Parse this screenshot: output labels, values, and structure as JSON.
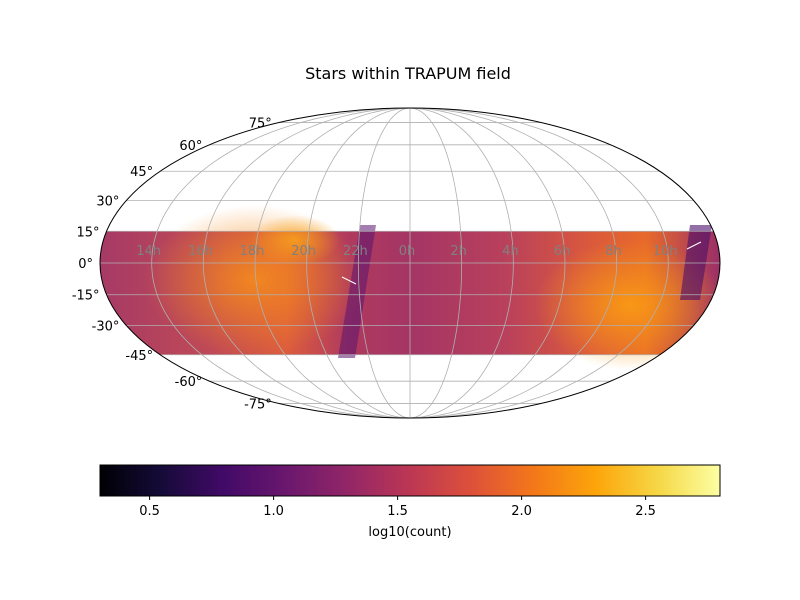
{
  "chart_data": {
    "type": "heatmap",
    "projection": "mollweide",
    "title": "Stars within TRAPUM field",
    "colorbar": {
      "label": "log10(count)",
      "colormap": "inferno",
      "range": [
        0.3,
        2.8
      ],
      "ticks": [
        "0.5",
        "1.0",
        "1.5",
        "2.0",
        "2.5"
      ],
      "tick_values": [
        0.5,
        1.0,
        1.5,
        2.0,
        2.5
      ]
    },
    "ra_ticks": [
      "14h",
      "16h",
      "18h",
      "20h",
      "22h",
      "0h",
      "2h",
      "4h",
      "6h",
      "8h",
      "10h"
    ],
    "ra_tick_values": [
      -150,
      -120,
      -90,
      -60,
      -30,
      0,
      30,
      60,
      90,
      120,
      150
    ],
    "dec_ticks": [
      "75°",
      "60°",
      "45°",
      "30°",
      "15°",
      "0°",
      "-15°",
      "-30°",
      "-45°",
      "-60°",
      "-75°"
    ],
    "dec_tick_values": [
      75,
      60,
      45,
      30,
      15,
      0,
      -15,
      -30,
      -45,
      -60,
      -75
    ],
    "dec_coverage": [
      -45,
      15
    ],
    "grid": true,
    "colors": {
      "grid": "#b0b0b0",
      "ra_label": "#808080",
      "outline": "#000000"
    }
  }
}
